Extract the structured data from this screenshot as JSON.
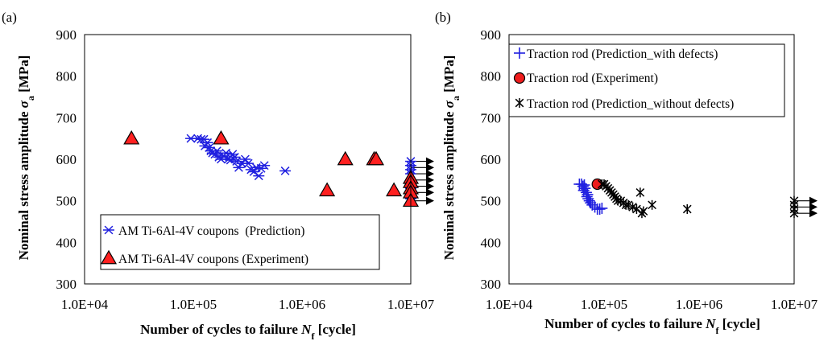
{
  "chart_data": [
    {
      "type": "scatter",
      "panel_label": "(a)",
      "xlabel_prefix": "Number of cycles to failure ",
      "xlabel_var": "N",
      "xlabel_sub": "f",
      "xlabel_suffix": " [cycle]",
      "ylabel_prefix": "Nominal stress amplitude ",
      "ylabel_var": "σ",
      "ylabel_sub": "a",
      "ylabel_suffix": " [MPa]",
      "x_scale": "log",
      "xlim": [
        10000,
        10000000
      ],
      "ylim": [
        300,
        900
      ],
      "x_ticks": [
        10000,
        100000,
        1000000,
        10000000
      ],
      "x_tick_labels": [
        "1.0E+04",
        "1.0E+05",
        "1.0E+06",
        "1.0E+07"
      ],
      "y_ticks": [
        300,
        400,
        500,
        600,
        700,
        800,
        900
      ],
      "y_tick_labels": [
        "300",
        "400",
        "500",
        "600",
        "700",
        "800",
        "900"
      ],
      "grid": false,
      "legend_position": "bottom-left",
      "series": [
        {
          "name": "AM Ti-6Al-4V coupons  (Prediction)",
          "marker": "asterisk",
          "color": "#2020e0",
          "points": [
            [
              95000,
              650
            ],
            [
              110000,
              650
            ],
            [
              118000,
              648
            ],
            [
              125000,
              648
            ],
            [
              135000,
              640
            ],
            [
              128000,
              632
            ],
            [
              140000,
              628
            ],
            [
              145000,
              620
            ],
            [
              150000,
              615
            ],
            [
              158000,
              612
            ],
            [
              165000,
              620
            ],
            [
              172000,
              605
            ],
            [
              180000,
              600
            ],
            [
              190000,
              608
            ],
            [
              200000,
              615
            ],
            [
              210000,
              600
            ],
            [
              220000,
              598
            ],
            [
              230000,
              612
            ],
            [
              240000,
              605
            ],
            [
              250000,
              595
            ],
            [
              262000,
              580
            ],
            [
              280000,
              590
            ],
            [
              300000,
              600
            ],
            [
              320000,
              590
            ],
            [
              340000,
              575
            ],
            [
              360000,
              570
            ],
            [
              380000,
              580
            ],
            [
              400000,
              560
            ],
            [
              420000,
              578
            ],
            [
              450000,
              585
            ],
            [
              700000,
              572
            ],
            [
              10000000,
              595
            ],
            [
              10000000,
              585
            ],
            [
              10000000,
              575
            ],
            [
              10000000,
              565
            ],
            [
              10000000,
              545
            ],
            [
              10000000,
              530
            ],
            [
              10000000,
              520
            ],
            [
              10000000,
              505
            ]
          ]
        },
        {
          "name": "AM Ti-6Al-4V coupons (Experiment)",
          "marker": "triangle",
          "color": "#ff2020",
          "points": [
            [
              27000,
              650
            ],
            [
              180000,
              650
            ],
            [
              1700000,
              525
            ],
            [
              2500000,
              600
            ],
            [
              4600000,
              600
            ],
            [
              4800000,
              600
            ],
            [
              7000000,
              525
            ],
            [
              10000000,
              555
            ],
            [
              10000000,
              545
            ],
            [
              10000000,
              530
            ],
            [
              10000000,
              520
            ],
            [
              10000000,
              500
            ]
          ]
        }
      ],
      "runout_arrow_values": [
        595,
        580,
        565,
        550,
        535,
        520,
        500
      ]
    },
    {
      "type": "scatter",
      "panel_label": "(b)",
      "xlabel_prefix": "Number of cycles to failure ",
      "xlabel_var": "N",
      "xlabel_sub": "f",
      "xlabel_suffix": " [cycle]",
      "ylabel_prefix": "Nominal stress amplitude ",
      "ylabel_var": "σ",
      "ylabel_sub": "a",
      "ylabel_suffix": " [MPa]",
      "x_scale": "log",
      "xlim": [
        10000,
        10000000
      ],
      "ylim": [
        300,
        900
      ],
      "x_ticks": [
        10000,
        100000,
        1000000,
        10000000
      ],
      "x_tick_labels": [
        "1.0E+04",
        "1.0E+05",
        "1.0E+06",
        "1.0E+07"
      ],
      "y_ticks": [
        300,
        400,
        500,
        600,
        700,
        800,
        900
      ],
      "y_tick_labels": [
        "300",
        "400",
        "500",
        "600",
        "700",
        "800",
        "900"
      ],
      "grid": false,
      "legend_position": "top-left",
      "series": [
        {
          "name": "Traction rod (Prediction_with defects)",
          "marker": "plus",
          "color": "#2020e0",
          "points": [
            [
              55000,
              540
            ],
            [
              58000,
              540
            ],
            [
              60000,
              535
            ],
            [
              61000,
              525
            ],
            [
              63000,
              530
            ],
            [
              65000,
              520
            ],
            [
              66000,
              510
            ],
            [
              68000,
              505
            ],
            [
              70000,
              500
            ],
            [
              72000,
              495
            ],
            [
              75000,
              490
            ],
            [
              80000,
              485
            ],
            [
              85000,
              480
            ],
            [
              90000,
              480
            ],
            [
              95000,
              482
            ],
            [
              62000,
              538
            ],
            [
              67000,
              515
            ]
          ]
        },
        {
          "name": "Traction rod (Experiment)",
          "marker": "circle",
          "color": "#ee1c1c",
          "points": [
            [
              85000,
              540
            ]
          ]
        },
        {
          "name": "Traction rod (Prediction_without defects)",
          "marker": "asterisk-x",
          "color": "#000000",
          "points": [
            [
              95000,
              540
            ],
            [
              100000,
              540
            ],
            [
              105000,
              535
            ],
            [
              110000,
              530
            ],
            [
              115000,
              525
            ],
            [
              120000,
              520
            ],
            [
              125000,
              515
            ],
            [
              130000,
              510
            ],
            [
              135000,
              505
            ],
            [
              140000,
              500
            ],
            [
              150000,
              500
            ],
            [
              160000,
              495
            ],
            [
              170000,
              490
            ],
            [
              180000,
              490
            ],
            [
              200000,
              485
            ],
            [
              220000,
              480
            ],
            [
              240000,
              520
            ],
            [
              250000,
              470
            ],
            [
              260000,
              475
            ],
            [
              320000,
              490
            ],
            [
              750000,
              480
            ],
            [
              10000000,
              500
            ],
            [
              10000000,
              490
            ],
            [
              10000000,
              480
            ],
            [
              10000000,
              470
            ]
          ]
        }
      ],
      "runout_arrow_values": [
        500,
        485,
        470
      ]
    }
  ]
}
